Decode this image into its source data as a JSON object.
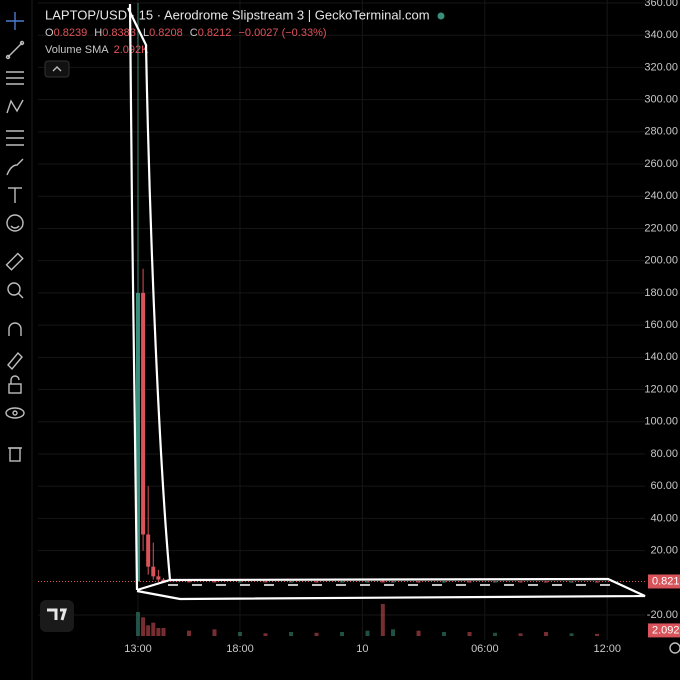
{
  "chart_data": {
    "type": "candlestick",
    "title": "LAPTOP/USD · 15 · Aerodrome Slipstream 3 | GeckoTerminal.com",
    "legend": {
      "o_label": "O",
      "o": "0.8239",
      "h_label": "H",
      "h": "0.8383",
      "l_label": "L",
      "l": "0.8208",
      "c_label": "C",
      "c": "0.8212",
      "change": "−0.0027 (−0.33%)",
      "volume_label": "Volume SMA",
      "volume_sma": "2.092K"
    },
    "up_color": "#3a8f7c",
    "down_color": "#d9535a",
    "x": [
      0,
      1,
      2,
      3,
      4,
      5,
      10,
      15,
      20,
      25,
      30,
      35,
      40,
      45,
      48,
      50,
      55,
      60,
      65,
      70,
      75,
      80,
      85,
      90
    ],
    "open": [
      0.8,
      180,
      30,
      10,
      4,
      2,
      0.9,
      0.88,
      0.86,
      0.87,
      0.85,
      0.86,
      0.84,
      0.85,
      0.86,
      0.84,
      0.85,
      0.83,
      0.84,
      0.83,
      0.84,
      0.83,
      0.82,
      0.8239
    ],
    "high": [
      360,
      195,
      60,
      25,
      8,
      3,
      1.2,
      1.1,
      1.0,
      1.0,
      0.95,
      0.95,
      0.92,
      0.95,
      1.5,
      0.92,
      0.9,
      0.9,
      0.9,
      0.88,
      0.88,
      0.87,
      0.86,
      0.8383
    ],
    "low": [
      0.8,
      20,
      5,
      2,
      1,
      0.8,
      0.85,
      0.84,
      0.83,
      0.83,
      0.82,
      0.82,
      0.81,
      0.82,
      0.8,
      0.82,
      0.81,
      0.81,
      0.81,
      0.81,
      0.81,
      0.8,
      0.8,
      0.8208
    ],
    "close": [
      180,
      30,
      10,
      4,
      2,
      0.9,
      0.88,
      0.86,
      0.87,
      0.85,
      0.86,
      0.84,
      0.85,
      0.86,
      0.84,
      0.85,
      0.83,
      0.84,
      0.83,
      0.84,
      0.83,
      0.82,
      0.8239,
      0.8212
    ],
    "volume": [
      9,
      7,
      4,
      5,
      3,
      3,
      2,
      2.5,
      1.5,
      1,
      1.5,
      1.2,
      1.5,
      2,
      12,
      2.5,
      2,
      1.5,
      1.5,
      1.2,
      1,
      1.5,
      1,
      0.8
    ],
    "volume_ylim": [
      0,
      15
    ],
    "xlim": [
      -19.6,
      99.4
    ],
    "xticks": [
      {
        "value": 0,
        "label": "13:00"
      },
      {
        "value": 20,
        "label": "18:00"
      },
      {
        "value": 44,
        "label": "10"
      },
      {
        "value": 68,
        "label": "06:00"
      },
      {
        "value": 92,
        "label": "12:00"
      }
    ],
    "ylim": [
      -20,
      360
    ],
    "yticks": [
      {
        "value": 360,
        "label": "360.00"
      },
      {
        "value": 340,
        "label": "340.00"
      },
      {
        "value": 320,
        "label": "320.00"
      },
      {
        "value": 300,
        "label": "300.00"
      },
      {
        "value": 280,
        "label": "280.00"
      },
      {
        "value": 260,
        "label": "260.00"
      },
      {
        "value": 240,
        "label": "240.00"
      },
      {
        "value": 220,
        "label": "220.00"
      },
      {
        "value": 200,
        "label": "200.00"
      },
      {
        "value": 180,
        "label": "180.00"
      },
      {
        "value": 160,
        "label": "160.00"
      },
      {
        "value": 140,
        "label": "140.00"
      },
      {
        "value": 120,
        "label": "120.00"
      },
      {
        "value": 100,
        "label": "100.00"
      },
      {
        "value": 80,
        "label": "80.00"
      },
      {
        "value": 60,
        "label": "60.00"
      },
      {
        "value": 40,
        "label": "40.00"
      },
      {
        "value": 20,
        "label": "20.00"
      },
      {
        "value": -20,
        "label": "-20.00"
      }
    ],
    "grid": true,
    "last_price": {
      "value": 0.8212,
      "label": "0.821"
    },
    "volume_tag": {
      "value": 2.092,
      "label": "2.092"
    }
  }
}
